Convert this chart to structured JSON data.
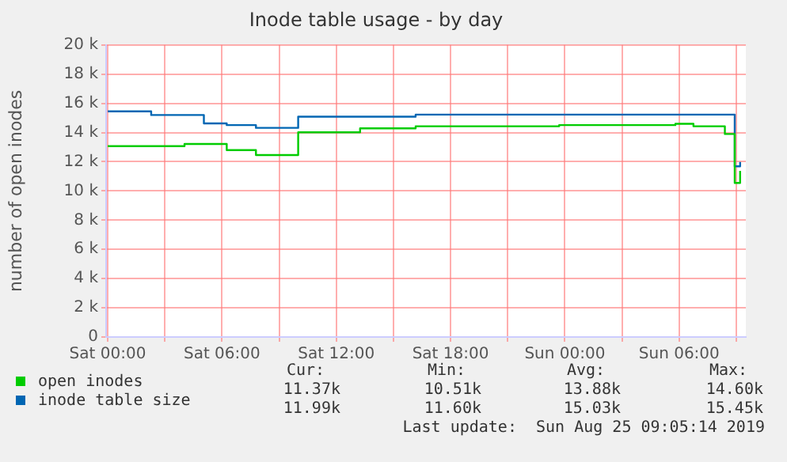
{
  "chart_data": {
    "type": "step",
    "title": "Inode table usage - by day",
    "ylabel": "number of open inodes",
    "x": [
      "2019-08-24T00:00",
      "2019-08-24T02:17",
      "2019-08-24T04:02",
      "2019-08-24T05:03",
      "2019-08-24T06:15",
      "2019-08-24T07:47",
      "2019-08-24T10:00",
      "2019-08-24T13:15",
      "2019-08-24T16:10",
      "2019-08-24T23:42",
      "2019-08-25T05:48",
      "2019-08-25T06:45",
      "2019-08-25T08:24",
      "2019-08-25T08:50",
      "2019-08-25T08:55",
      "2019-08-25T09:12"
    ],
    "series": [
      {
        "name": "open inodes",
        "color": "#00cc00",
        "values": [
          13070,
          13070,
          13220,
          13220,
          12800,
          12460,
          14020,
          14290,
          14430,
          14510,
          14600,
          14430,
          13900,
          13900,
          10550,
          11370
        ]
      },
      {
        "name": "inode table size",
        "color": "#0066b3",
        "values": [
          15450,
          15200,
          15200,
          14630,
          14510,
          14320,
          15090,
          15090,
          15230,
          15230,
          15230,
          15230,
          15230,
          15230,
          11690,
          11990
        ]
      }
    ],
    "xlim": [
      "2019-08-23T23:55",
      "2019-08-25T09:30"
    ],
    "xticks": [
      {
        "value": "2019-08-24T00:00",
        "label": "Sat 00:00"
      },
      {
        "value": "2019-08-24T03:00",
        "label": null
      },
      {
        "value": "2019-08-24T06:00",
        "label": "Sat 06:00"
      },
      {
        "value": "2019-08-24T09:00",
        "label": null
      },
      {
        "value": "2019-08-24T12:00",
        "label": "Sat 12:00"
      },
      {
        "value": "2019-08-24T15:00",
        "label": null
      },
      {
        "value": "2019-08-24T18:00",
        "label": "Sat 18:00"
      },
      {
        "value": "2019-08-24T21:00",
        "label": null
      },
      {
        "value": "2019-08-25T00:00",
        "label": "Sun 00:00"
      },
      {
        "value": "2019-08-25T03:00",
        "label": null
      },
      {
        "value": "2019-08-25T06:00",
        "label": "Sun 06:00"
      },
      {
        "value": "2019-08-25T09:00",
        "label": null
      }
    ],
    "ylim": [
      0,
      20000
    ],
    "yticks": [
      0,
      {
        "value": 2000,
        "label": "2 k"
      },
      {
        "value": 4000,
        "label": "4 k"
      },
      {
        "value": 6000,
        "label": "6 k"
      },
      {
        "value": 8000,
        "label": "8 k"
      },
      {
        "value": 10000,
        "label": "10 k"
      },
      {
        "value": 12000,
        "label": "12 k"
      },
      {
        "value": 14000,
        "label": "14 k"
      },
      {
        "value": 16000,
        "label": "16 k"
      },
      {
        "value": 18000,
        "label": "18 k"
      },
      {
        "value": 20000,
        "label": "20 k"
      }
    ],
    "grid": true,
    "legend": "bottom left",
    "annotations": [
      "Cur:",
      "Min:",
      "Avg:",
      "Max:",
      "11.37k",
      "10.51k",
      "13.88k",
      "14.60k",
      "11.99k",
      "11.60k",
      "15.03k",
      "15.45k",
      "Last update:  Sun Aug 25 09:05:14 2019"
    ]
  }
}
